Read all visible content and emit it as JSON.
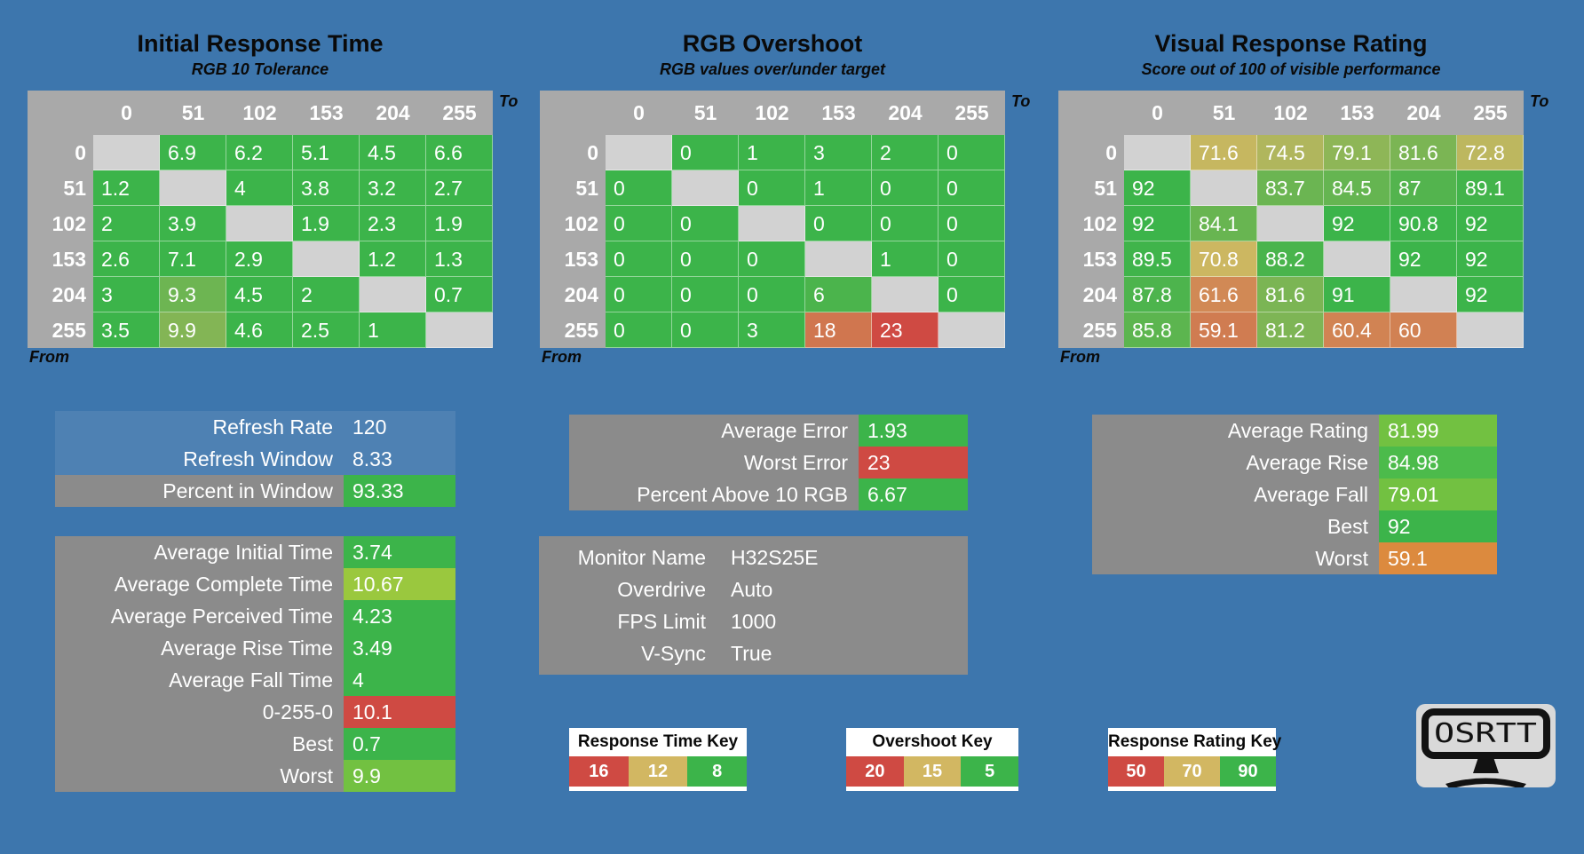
{
  "window": {
    "bg": "#3D76AD"
  },
  "palette": {
    "green": "#3CB44A",
    "green2": "#4CBB4B",
    "lime": "#72C141",
    "yellowgreen": "#9AC83E",
    "tan": "#D2B762",
    "orange": "#DC8A3E",
    "red": "#CF4A43",
    "blank_cell": "#D2D2D2",
    "header_gray": "#A9A9A9",
    "panel_gray": "#8B8B8B",
    "panel_blue": "#4E81B3"
  },
  "axis": {
    "to": "To",
    "from": "From",
    "levels": [
      "0",
      "51",
      "102",
      "153",
      "204",
      "255"
    ]
  },
  "chart_data": [
    {
      "type": "heatmap",
      "title": "Initial Response Time",
      "subtitle": "RGB 10 Tolerance",
      "xlabel": "To",
      "ylabel": "From",
      "x_ticks": [
        "0",
        "51",
        "102",
        "153",
        "204",
        "255"
      ],
      "y_ticks": [
        "0",
        "51",
        "102",
        "153",
        "204",
        "255"
      ],
      "color_scale": {
        "better": "lower",
        "green_at": 8,
        "tan_at": 12,
        "red_at": 16
      },
      "rows": [
        [
          null,
          6.9,
          6.2,
          5.1,
          4.5,
          6.6
        ],
        [
          1.2,
          null,
          4,
          3.8,
          3.2,
          2.7
        ],
        [
          2,
          3.9,
          null,
          1.9,
          2.3,
          1.9
        ],
        [
          2.6,
          7.1,
          2.9,
          null,
          1.2,
          1.3
        ],
        [
          3,
          9.3,
          4.5,
          2,
          null,
          0.7
        ],
        [
          3.5,
          9.9,
          4.6,
          2.5,
          1,
          null
        ]
      ]
    },
    {
      "type": "heatmap",
      "title": "RGB Overshoot",
      "subtitle": "RGB values over/under target",
      "xlabel": "To",
      "ylabel": "From",
      "x_ticks": [
        "0",
        "51",
        "102",
        "153",
        "204",
        "255"
      ],
      "y_ticks": [
        "0",
        "51",
        "102",
        "153",
        "204",
        "255"
      ],
      "color_scale": {
        "better": "lower",
        "green_at": 5,
        "tan_at": 15,
        "red_at": 20
      },
      "rows": [
        [
          null,
          0,
          1,
          3,
          2,
          0
        ],
        [
          0,
          null,
          0,
          1,
          0,
          0
        ],
        [
          0,
          0,
          null,
          0,
          0,
          0
        ],
        [
          0,
          0,
          0,
          null,
          1,
          0
        ],
        [
          0,
          0,
          0,
          6,
          null,
          0
        ],
        [
          0,
          0,
          3,
          18,
          23,
          null
        ]
      ]
    },
    {
      "type": "heatmap",
      "title": "Visual Response Rating",
      "subtitle": "Score out of 100 of visible performance",
      "xlabel": "To",
      "ylabel": "From",
      "x_ticks": [
        "0",
        "51",
        "102",
        "153",
        "204",
        "255"
      ],
      "y_ticks": [
        "0",
        "51",
        "102",
        "153",
        "204",
        "255"
      ],
      "color_scale": {
        "better": "higher",
        "green_at": 90,
        "tan_at": 70,
        "red_at": 50
      },
      "rows": [
        [
          null,
          71.6,
          74.5,
          79.1,
          81.6,
          72.8
        ],
        [
          92,
          null,
          83.7,
          84.5,
          87,
          89.1
        ],
        [
          92,
          84.1,
          null,
          92,
          90.8,
          92
        ],
        [
          89.5,
          70.8,
          88.2,
          null,
          92,
          92
        ],
        [
          87.8,
          61.6,
          81.6,
          91,
          null,
          92
        ],
        [
          85.8,
          59.1,
          81.2,
          60.4,
          60,
          null
        ]
      ]
    }
  ],
  "panels": {
    "refresh": {
      "rows": [
        {
          "label": "Refresh Rate",
          "value": "120",
          "row_bg": "panel_blue"
        },
        {
          "label": "Refresh Window",
          "value": "8.33",
          "row_bg": "panel_blue"
        },
        {
          "label": "Percent in Window",
          "value": "93.33",
          "chip": "green"
        }
      ]
    },
    "times": {
      "rows": [
        {
          "label": "Average Initial Time",
          "value": "3.74",
          "chip": "green"
        },
        {
          "label": "Average Complete Time",
          "value": "10.67",
          "chip": "yellowgreen"
        },
        {
          "label": "Average Perceived Time",
          "value": "4.23",
          "chip": "green"
        },
        {
          "label": "Average Rise Time",
          "value": "3.49",
          "chip": "green"
        },
        {
          "label": "Average Fall Time",
          "value": "4",
          "chip": "green"
        },
        {
          "label": "0-255-0",
          "value": "10.1",
          "chip": "red"
        },
        {
          "label": "Best",
          "value": "0.7",
          "chip": "green"
        },
        {
          "label": "Worst",
          "value": "9.9",
          "chip": "lime"
        }
      ]
    },
    "error": {
      "rows": [
        {
          "label": "Average Error",
          "value": "1.93",
          "chip": "green"
        },
        {
          "label": "Worst Error",
          "value": "23",
          "chip": "red"
        },
        {
          "label": "Percent Above 10 RGB",
          "value": "6.67",
          "chip": "green"
        }
      ]
    },
    "monitor": {
      "rows": [
        {
          "label": "Monitor Name",
          "value": "H32S25E"
        },
        {
          "label": "Overdrive",
          "value": "Auto"
        },
        {
          "label": "FPS Limit",
          "value": "1000"
        },
        {
          "label": "V-Sync",
          "value": "True"
        }
      ]
    },
    "rating": {
      "rows": [
        {
          "label": "Average Rating",
          "value": "81.99",
          "chip": "lime"
        },
        {
          "label": "Average Rise",
          "value": "84.98",
          "chip": "green2"
        },
        {
          "label": "Average Fall",
          "value": "79.01",
          "chip": "lime"
        },
        {
          "label": "Best",
          "value": "92",
          "chip": "green"
        },
        {
          "label": "Worst",
          "value": "59.1",
          "chip": "orange"
        }
      ]
    }
  },
  "keys": [
    {
      "title": "Response Time Key",
      "cells": [
        {
          "value": "16",
          "color": "red"
        },
        {
          "value": "12",
          "color": "tan"
        },
        {
          "value": "8",
          "color": "green"
        }
      ]
    },
    {
      "title": "Overshoot Key",
      "cells": [
        {
          "value": "20",
          "color": "red"
        },
        {
          "value": "15",
          "color": "tan"
        },
        {
          "value": "5",
          "color": "green"
        }
      ]
    },
    {
      "title": "Response Rating Key",
      "cells": [
        {
          "value": "50",
          "color": "red"
        },
        {
          "value": "70",
          "color": "tan"
        },
        {
          "value": "90",
          "color": "green"
        }
      ]
    }
  ],
  "logo": {
    "text": "OSRTT"
  }
}
